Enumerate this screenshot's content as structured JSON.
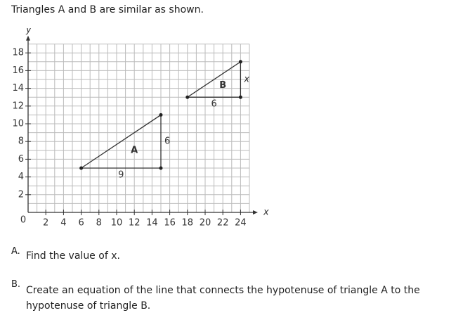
{
  "intro": "Triangles A and B are similar as shown.",
  "figure": {
    "xlabel": "x",
    "ylabel": "y",
    "origin_label": "0",
    "xlim": [
      0,
      25
    ],
    "ylim": [
      0,
      19
    ],
    "xticks": [
      2,
      4,
      6,
      8,
      10,
      12,
      14,
      16,
      18,
      20,
      22,
      24
    ],
    "yticks": [
      2,
      4,
      6,
      8,
      10,
      12,
      14,
      16,
      18
    ],
    "triangles": [
      {
        "name": "A",
        "x": [
          6,
          15,
          15
        ],
        "y": [
          5,
          5,
          11
        ],
        "base_label": "9",
        "height_label": "6"
      },
      {
        "name": "B",
        "x": [
          18,
          24,
          24
        ],
        "y": [
          13,
          13,
          17
        ],
        "base_label": "6",
        "height_label": "x"
      }
    ]
  },
  "questions": [
    {
      "letter": "A.",
      "text": "Find the value of x."
    },
    {
      "letter": "B.",
      "text": "Create an equation of the line that connects the hypotenuse of triangle A to the hypotenuse of triangle B."
    }
  ]
}
